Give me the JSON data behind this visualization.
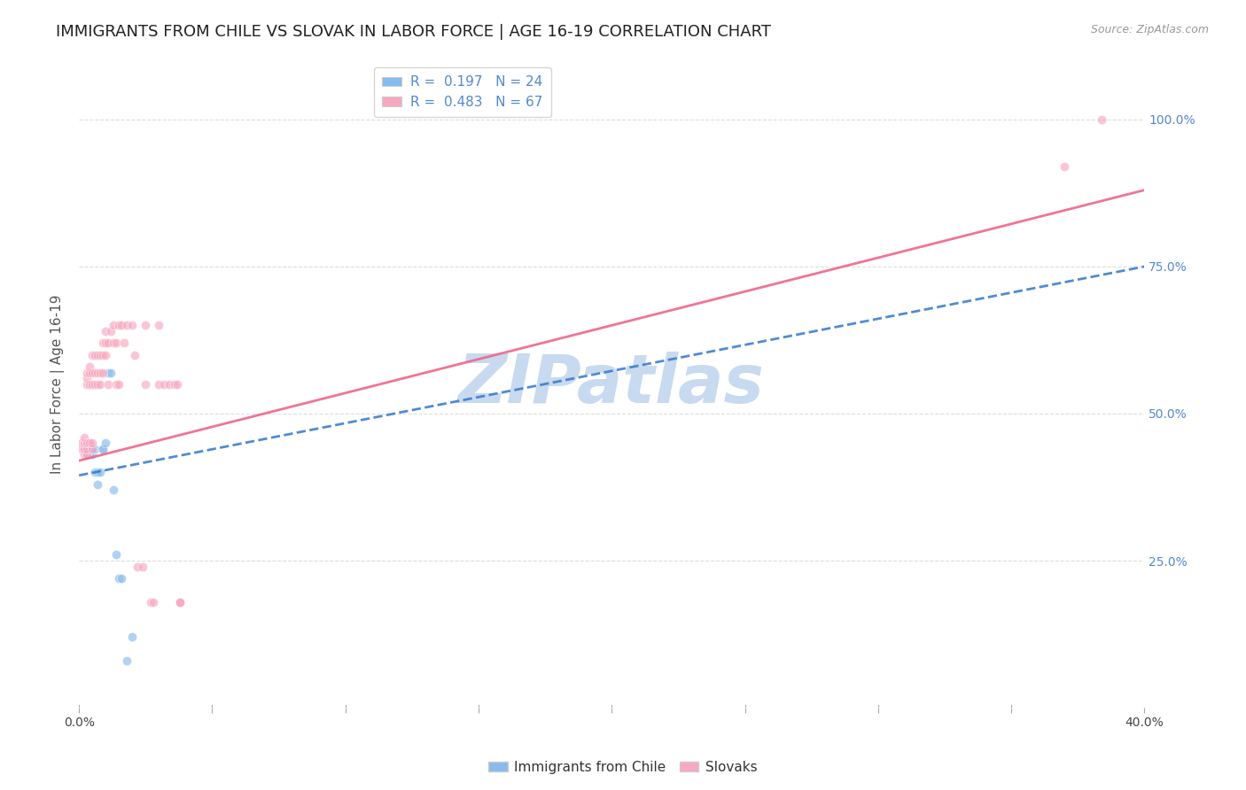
{
  "title": "IMMIGRANTS FROM CHILE VS SLOVAK IN LABOR FORCE | AGE 16-19 CORRELATION CHART",
  "source": "Source: ZipAtlas.com",
  "ylabel": "In Labor Force | Age 16-19",
  "xlim": [
    0.0,
    0.4
  ],
  "ylim": [
    0.0,
    1.1
  ],
  "yticks": [
    0.0,
    0.25,
    0.5,
    0.75,
    1.0
  ],
  "ytick_labels": [
    "",
    "25.0%",
    "50.0%",
    "75.0%",
    "100.0%"
  ],
  "xticks": [
    0.0,
    0.05,
    0.1,
    0.15,
    0.2,
    0.25,
    0.3,
    0.35,
    0.4
  ],
  "xtick_labels": [
    "0.0%",
    "",
    "",
    "",
    "",
    "",
    "",
    "",
    "40.0%"
  ],
  "watermark": "ZIPatlas",
  "watermark_color": "#c8daf0",
  "blue_scatter_x": [
    0.002,
    0.003,
    0.003,
    0.004,
    0.004,
    0.004,
    0.005,
    0.005,
    0.006,
    0.006,
    0.007,
    0.007,
    0.008,
    0.009,
    0.009,
    0.01,
    0.011,
    0.012,
    0.013,
    0.014,
    0.015,
    0.016,
    0.018,
    0.02
  ],
  "blue_scatter_y": [
    0.44,
    0.44,
    0.43,
    0.43,
    0.44,
    0.45,
    0.43,
    0.44,
    0.44,
    0.4,
    0.38,
    0.4,
    0.4,
    0.44,
    0.44,
    0.45,
    0.57,
    0.57,
    0.37,
    0.26,
    0.22,
    0.22,
    0.08,
    0.12
  ],
  "pink_scatter_x": [
    0.001,
    0.001,
    0.002,
    0.002,
    0.002,
    0.002,
    0.003,
    0.003,
    0.003,
    0.003,
    0.003,
    0.003,
    0.004,
    0.004,
    0.004,
    0.004,
    0.005,
    0.005,
    0.005,
    0.005,
    0.005,
    0.006,
    0.006,
    0.006,
    0.007,
    0.007,
    0.007,
    0.008,
    0.008,
    0.008,
    0.009,
    0.009,
    0.009,
    0.01,
    0.01,
    0.01,
    0.011,
    0.011,
    0.012,
    0.013,
    0.013,
    0.014,
    0.014,
    0.015,
    0.015,
    0.016,
    0.017,
    0.018,
    0.02,
    0.021,
    0.022,
    0.024,
    0.025,
    0.025,
    0.027,
    0.028,
    0.03,
    0.03,
    0.032,
    0.034,
    0.036,
    0.037,
    0.038,
    0.038,
    0.038,
    0.384,
    0.37
  ],
  "pink_scatter_y": [
    0.44,
    0.45,
    0.43,
    0.44,
    0.45,
    0.46,
    0.43,
    0.44,
    0.45,
    0.55,
    0.56,
    0.57,
    0.45,
    0.55,
    0.57,
    0.58,
    0.44,
    0.45,
    0.55,
    0.57,
    0.6,
    0.55,
    0.57,
    0.6,
    0.55,
    0.57,
    0.6,
    0.55,
    0.57,
    0.6,
    0.57,
    0.6,
    0.62,
    0.6,
    0.62,
    0.64,
    0.55,
    0.62,
    0.64,
    0.62,
    0.65,
    0.55,
    0.62,
    0.55,
    0.65,
    0.65,
    0.62,
    0.65,
    0.65,
    0.6,
    0.24,
    0.24,
    0.55,
    0.65,
    0.18,
    0.18,
    0.55,
    0.65,
    0.55,
    0.55,
    0.55,
    0.55,
    0.18,
    0.18,
    0.18,
    1.0,
    0.92
  ],
  "blue_line_x": [
    0.0,
    0.4
  ],
  "blue_line_y": [
    0.395,
    0.75
  ],
  "pink_line_x": [
    0.0,
    0.4
  ],
  "pink_line_y": [
    0.42,
    0.88
  ],
  "scatter_size": 55,
  "scatter_alpha": 0.65,
  "blue_color": "#88bbee",
  "pink_color": "#f8a8c0",
  "blue_line_color": "#3377cc",
  "pink_line_color": "#ee6688",
  "grid_color": "#dddddd",
  "title_fontsize": 13,
  "label_fontsize": 11,
  "tick_fontsize": 10,
  "legend_fontsize": 11,
  "right_tick_color": "#5588cc",
  "legend_r_blue": "#3355aa",
  "legend_n_black": "#111111"
}
